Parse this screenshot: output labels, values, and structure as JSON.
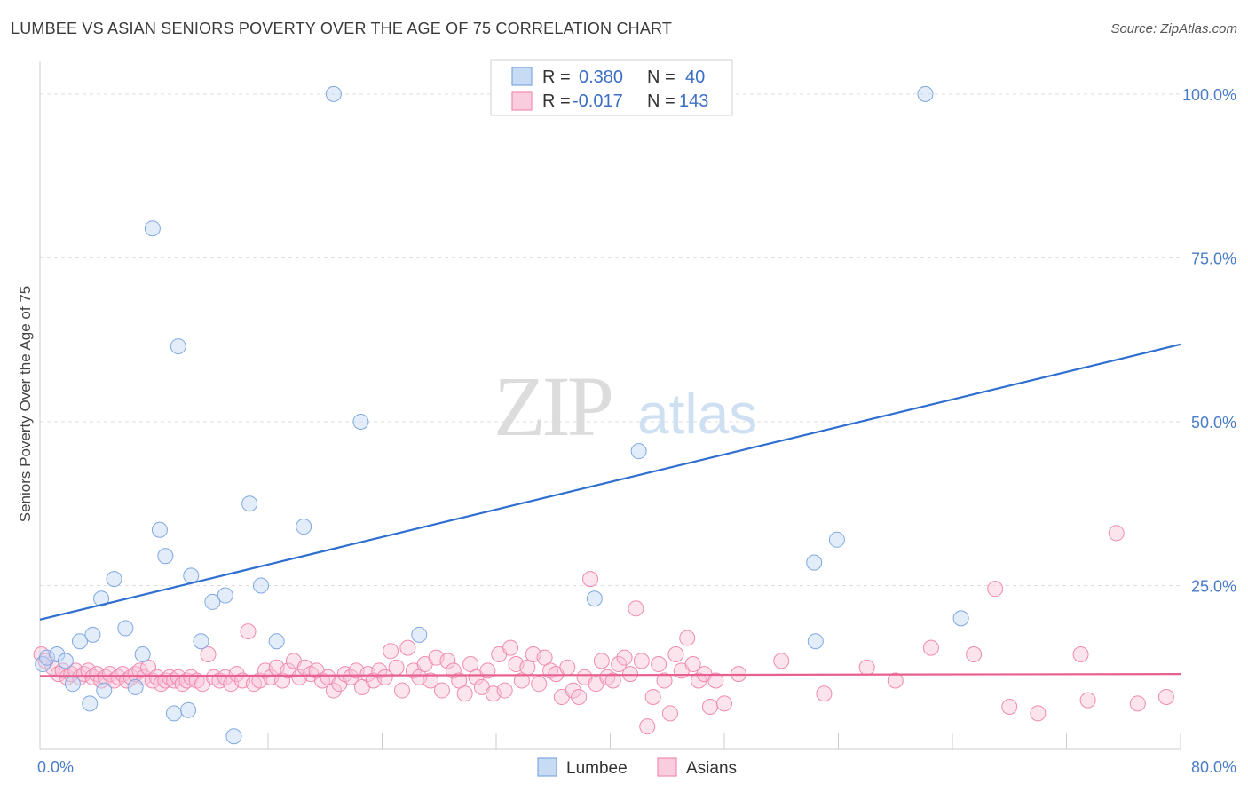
{
  "header": {
    "title": "LUMBEE VS ASIAN SENIORS POVERTY OVER THE AGE OF 75 CORRELATION CHART",
    "source": "Source: ZipAtlas.com"
  },
  "watermark": {
    "part1": "ZIP",
    "part2": "atlas"
  },
  "legend": {
    "rows": [
      {
        "r_label": "R =",
        "r_value": "0.380",
        "n_label": "N =",
        "n_value": "40"
      },
      {
        "r_label": "R =",
        "r_value": "-0.017",
        "n_label": "N =",
        "n_value": "143"
      }
    ]
  },
  "chart_data": {
    "type": "scatter",
    "title": "LUMBEE VS ASIAN SENIORS POVERTY OVER THE AGE OF 75 CORRELATION CHART",
    "xlabel": "",
    "ylabel": "Seniors Poverty Over the Age of 75",
    "xlim": [
      0,
      80
    ],
    "ylim": [
      0,
      105
    ],
    "x_tick_labels": [
      "0.0%",
      "80.0%"
    ],
    "y_ticks": [
      25,
      50,
      75,
      100
    ],
    "y_tick_labels": [
      "25.0%",
      "50.0%",
      "75.0%",
      "100.0%"
    ],
    "grid": true,
    "legend_position": "bottom-center",
    "colors": {
      "lumbee": "#7fa8e0",
      "asians": "#f08bb0",
      "lumbee_line": "#2f6fd0",
      "asians_line": "#e8608f"
    },
    "series": [
      {
        "name": "Lumbee",
        "r": 0.38,
        "n": 40,
        "trend": {
          "x": [
            0,
            80
          ],
          "y": [
            19.8,
            61.8
          ]
        },
        "points": [
          [
            0.2,
            13.0
          ],
          [
            0.5,
            14.0
          ],
          [
            1.2,
            14.5
          ],
          [
            1.8,
            13.5
          ],
          [
            2.3,
            10.0
          ],
          [
            2.8,
            16.5
          ],
          [
            3.5,
            7.0
          ],
          [
            3.7,
            17.5
          ],
          [
            4.5,
            9.0
          ],
          [
            4.3,
            23.0
          ],
          [
            5.2,
            26.0
          ],
          [
            6.0,
            18.5
          ],
          [
            6.7,
            9.5
          ],
          [
            7.2,
            14.5
          ],
          [
            7.9,
            79.5
          ],
          [
            8.4,
            33.5
          ],
          [
            8.8,
            29.5
          ],
          [
            9.4,
            5.5
          ],
          [
            9.7,
            61.5
          ],
          [
            10.4,
            6.0
          ],
          [
            10.6,
            26.5
          ],
          [
            11.3,
            16.5
          ],
          [
            12.1,
            22.5
          ],
          [
            13.0,
            23.5
          ],
          [
            13.6,
            2.0
          ],
          [
            14.7,
            37.5
          ],
          [
            15.5,
            25.0
          ],
          [
            16.6,
            16.5
          ],
          [
            18.5,
            34.0
          ],
          [
            20.6,
            100.0
          ],
          [
            22.5,
            50.0
          ],
          [
            26.6,
            17.5
          ],
          [
            38.5,
            100.0
          ],
          [
            38.9,
            23.0
          ],
          [
            42.0,
            45.5
          ],
          [
            54.3,
            28.5
          ],
          [
            54.4,
            16.5
          ],
          [
            55.9,
            32.0
          ],
          [
            62.1,
            100.0
          ],
          [
            64.6,
            20.0
          ]
        ]
      },
      {
        "name": "Asians",
        "r": -0.017,
        "n": 143,
        "trend": {
          "x": [
            0,
            80
          ],
          "y": [
            11.2,
            11.5
          ]
        },
        "points": [
          [
            0.1,
            14.5
          ],
          [
            0.4,
            13.5
          ],
          [
            0.9,
            12.5
          ],
          [
            1.3,
            11.5
          ],
          [
            1.6,
            12.0
          ],
          [
            1.9,
            11.0
          ],
          [
            2.2,
            11.5
          ],
          [
            2.5,
            12.0
          ],
          [
            2.8,
            11.0
          ],
          [
            3.1,
            11.5
          ],
          [
            3.4,
            12.0
          ],
          [
            3.7,
            11.0
          ],
          [
            4.0,
            11.5
          ],
          [
            4.3,
            10.5
          ],
          [
            4.6,
            11.0
          ],
          [
            4.9,
            11.5
          ],
          [
            5.2,
            10.5
          ],
          [
            5.5,
            11.0
          ],
          [
            5.8,
            11.5
          ],
          [
            6.1,
            10.5
          ],
          [
            6.4,
            11.0
          ],
          [
            6.7,
            11.5
          ],
          [
            7.0,
            12.0
          ],
          [
            7.3,
            11.0
          ],
          [
            7.6,
            12.5
          ],
          [
            7.9,
            10.5
          ],
          [
            8.2,
            11.0
          ],
          [
            8.5,
            10.0
          ],
          [
            8.8,
            10.5
          ],
          [
            9.1,
            11.0
          ],
          [
            9.4,
            10.5
          ],
          [
            9.7,
            11.0
          ],
          [
            10.0,
            10.0
          ],
          [
            10.3,
            10.5
          ],
          [
            10.6,
            11.0
          ],
          [
            11.0,
            10.5
          ],
          [
            11.4,
            10.0
          ],
          [
            11.8,
            14.5
          ],
          [
            12.2,
            11.0
          ],
          [
            12.6,
            10.5
          ],
          [
            13.0,
            11.0
          ],
          [
            13.4,
            10.0
          ],
          [
            13.8,
            11.5
          ],
          [
            14.2,
            10.5
          ],
          [
            14.6,
            18.0
          ],
          [
            15.0,
            10.0
          ],
          [
            15.4,
            10.5
          ],
          [
            15.8,
            12.0
          ],
          [
            16.2,
            11.0
          ],
          [
            16.6,
            12.5
          ],
          [
            17.0,
            10.5
          ],
          [
            17.4,
            12.0
          ],
          [
            17.8,
            13.5
          ],
          [
            18.2,
            11.0
          ],
          [
            18.6,
            12.5
          ],
          [
            19.0,
            11.5
          ],
          [
            19.4,
            12.0
          ],
          [
            19.8,
            10.5
          ],
          [
            20.2,
            11.0
          ],
          [
            20.6,
            9.0
          ],
          [
            21.0,
            10.0
          ],
          [
            21.4,
            11.5
          ],
          [
            21.8,
            11.0
          ],
          [
            22.2,
            12.0
          ],
          [
            22.6,
            9.5
          ],
          [
            23.0,
            11.5
          ],
          [
            23.4,
            10.5
          ],
          [
            23.8,
            12.0
          ],
          [
            24.2,
            11.0
          ],
          [
            24.6,
            15.0
          ],
          [
            25.0,
            12.5
          ],
          [
            25.4,
            9.0
          ],
          [
            25.8,
            15.5
          ],
          [
            26.2,
            12.0
          ],
          [
            26.6,
            11.0
          ],
          [
            27.0,
            13.0
          ],
          [
            27.4,
            10.5
          ],
          [
            27.8,
            14.0
          ],
          [
            28.2,
            9.0
          ],
          [
            28.6,
            13.5
          ],
          [
            29.0,
            12.0
          ],
          [
            29.4,
            10.5
          ],
          [
            29.8,
            8.5
          ],
          [
            30.2,
            13.0
          ],
          [
            30.6,
            11.0
          ],
          [
            31.0,
            9.5
          ],
          [
            31.4,
            12.0
          ],
          [
            31.8,
            8.5
          ],
          [
            32.2,
            14.5
          ],
          [
            32.6,
            9.0
          ],
          [
            33.0,
            15.5
          ],
          [
            33.4,
            13.0
          ],
          [
            33.8,
            10.5
          ],
          [
            34.2,
            12.5
          ],
          [
            34.6,
            14.5
          ],
          [
            35.0,
            10.0
          ],
          [
            35.4,
            14.0
          ],
          [
            35.8,
            12.0
          ],
          [
            36.2,
            11.5
          ],
          [
            36.6,
            8.0
          ],
          [
            37.0,
            12.5
          ],
          [
            37.4,
            9.0
          ],
          [
            37.8,
            8.0
          ],
          [
            38.2,
            11.0
          ],
          [
            38.6,
            26.0
          ],
          [
            39.0,
            10.0
          ],
          [
            39.4,
            13.5
          ],
          [
            39.8,
            11.0
          ],
          [
            40.2,
            10.5
          ],
          [
            40.6,
            13.0
          ],
          [
            41.0,
            14.0
          ],
          [
            41.4,
            11.5
          ],
          [
            41.8,
            21.5
          ],
          [
            42.2,
            13.5
          ],
          [
            42.6,
            3.5
          ],
          [
            43.0,
            8.0
          ],
          [
            43.4,
            13.0
          ],
          [
            43.8,
            10.5
          ],
          [
            44.2,
            5.5
          ],
          [
            44.6,
            14.5
          ],
          [
            45.0,
            12.0
          ],
          [
            45.4,
            17.0
          ],
          [
            45.8,
            13.0
          ],
          [
            46.2,
            10.5
          ],
          [
            46.6,
            11.5
          ],
          [
            47.0,
            6.5
          ],
          [
            47.4,
            10.5
          ],
          [
            48.0,
            7.0
          ],
          [
            49.0,
            11.5
          ],
          [
            52.0,
            13.5
          ],
          [
            55.0,
            8.5
          ],
          [
            58.0,
            12.5
          ],
          [
            60.0,
            10.5
          ],
          [
            62.5,
            15.5
          ],
          [
            65.5,
            14.5
          ],
          [
            67.0,
            24.5
          ],
          [
            68.0,
            6.5
          ],
          [
            70.0,
            5.5
          ],
          [
            73.0,
            14.5
          ],
          [
            73.5,
            7.5
          ],
          [
            75.5,
            33.0
          ],
          [
            77.0,
            7.0
          ],
          [
            79.0,
            8.0
          ]
        ]
      }
    ]
  }
}
